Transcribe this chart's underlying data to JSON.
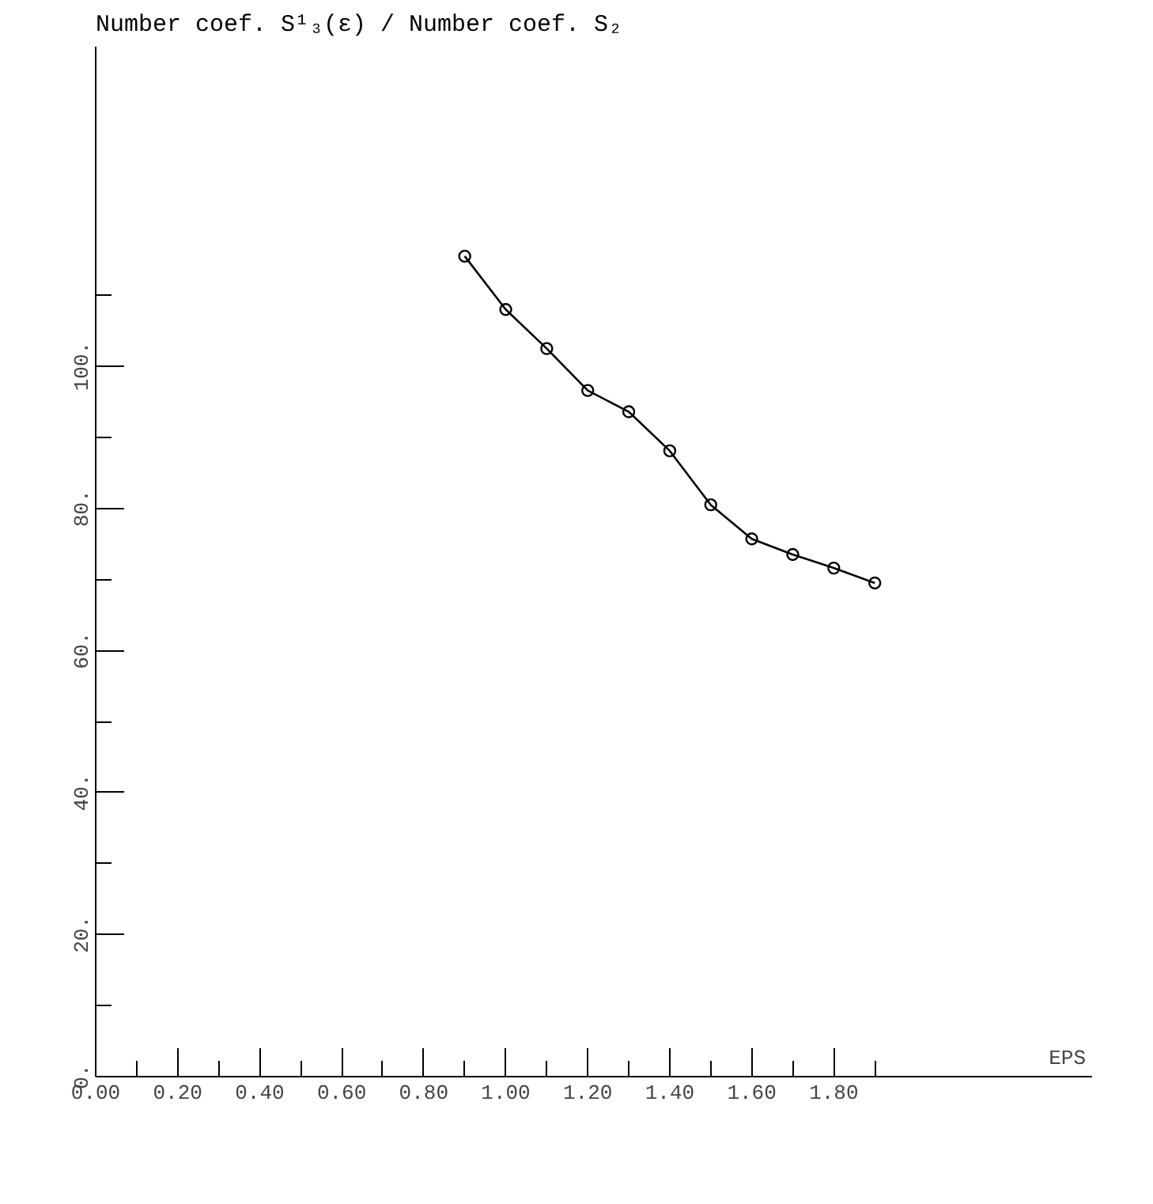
{
  "chart_data": {
    "type": "line",
    "ylabel": "Number coef. S¹₃(ε) / Number coef. S₂",
    "xlabel": "EPS",
    "x": [
      0.9,
      1.0,
      1.1,
      1.2,
      1.3,
      1.4,
      1.5,
      1.6,
      1.7,
      1.8,
      1.9
    ],
    "series": [
      {
        "color": "#000000",
        "values": [
          115.5,
          108.0,
          102.5,
          96.6,
          93.6,
          88.1,
          80.5,
          75.7,
          73.5,
          71.6,
          69.5
        ]
      }
    ],
    "xlim": [
      0,
      2.43
    ],
    "ylim": [
      0,
      145
    ],
    "xticks": [
      {
        "value": 0,
        "label": "0.00"
      },
      {
        "value": 0.1,
        "label": null
      },
      {
        "value": 0.2,
        "label": "0.20"
      },
      {
        "value": 0.3,
        "label": null
      },
      {
        "value": 0.4,
        "label": "0.40"
      },
      {
        "value": 0.5,
        "label": null
      },
      {
        "value": 0.6,
        "label": "0.60"
      },
      {
        "value": 0.7,
        "label": null
      },
      {
        "value": 0.8,
        "label": "0.80"
      },
      {
        "value": 0.9,
        "label": null
      },
      {
        "value": 1.0,
        "label": "1.00"
      },
      {
        "value": 1.1,
        "label": null
      },
      {
        "value": 1.2,
        "label": "1.20"
      },
      {
        "value": 1.3,
        "label": null
      },
      {
        "value": 1.4,
        "label": "1.40"
      },
      {
        "value": 1.5,
        "label": null
      },
      {
        "value": 1.6,
        "label": "1.60"
      },
      {
        "value": 1.7,
        "label": null
      },
      {
        "value": 1.8,
        "label": "1.80"
      },
      {
        "value": 1.9,
        "label": null
      }
    ],
    "yticks": [
      {
        "value": 0,
        "label": "0."
      },
      {
        "value": 10,
        "label": null
      },
      {
        "value": 20,
        "label": "20."
      },
      {
        "value": 30,
        "label": null
      },
      {
        "value": 40,
        "label": "40."
      },
      {
        "value": 50,
        "label": null
      },
      {
        "value": 60,
        "label": "60."
      },
      {
        "value": 70,
        "label": null
      },
      {
        "value": 80,
        "label": "80."
      },
      {
        "value": 90,
        "label": null
      },
      {
        "value": 100,
        "label": "100."
      },
      {
        "value": 110,
        "label": null
      }
    ],
    "grid": false,
    "marker": "circle",
    "line_style": "solid"
  }
}
